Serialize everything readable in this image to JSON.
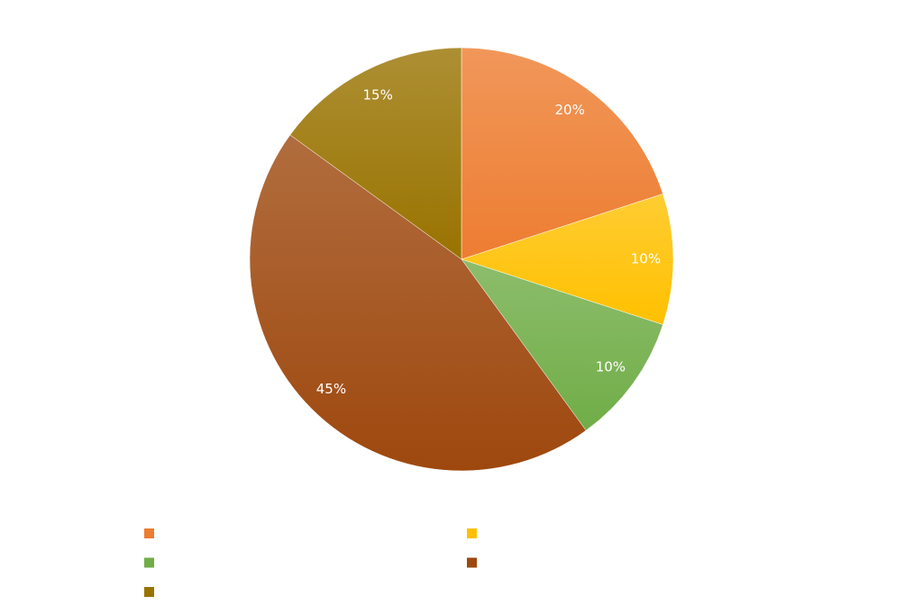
{
  "chart_data": {
    "type": "pie",
    "categories": [
      null,
      null,
      null,
      null,
      null
    ],
    "values": [
      20,
      10,
      10,
      45,
      15
    ],
    "value_labels": [
      "20%",
      "10%",
      "10%",
      "45%",
      "15%"
    ],
    "colors": [
      "#ED7D31",
      "#FFC000",
      "#70AD47",
      "#9E480E",
      "#997300"
    ],
    "legend": "bottom"
  }
}
